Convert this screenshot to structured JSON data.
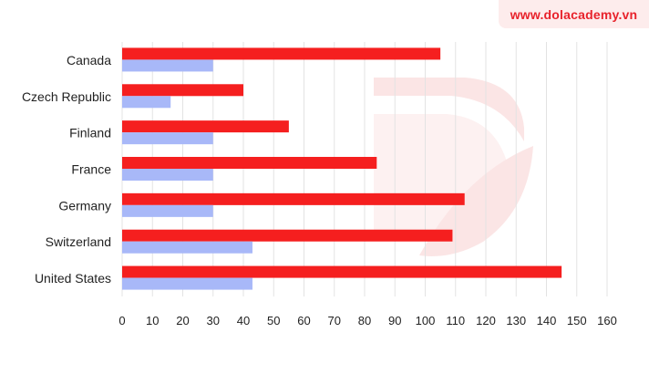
{
  "brand": {
    "text": "www.dolacademy.vn"
  },
  "chart_data": {
    "type": "bar",
    "orientation": "horizontal",
    "categories": [
      "Canada",
      "Czech Republic",
      "Finland",
      "France",
      "Germany",
      "Switzerland",
      "United States"
    ],
    "series": [
      {
        "color": "#f51f1f",
        "values": [
          105,
          40,
          55,
          84,
          113,
          109,
          145
        ]
      },
      {
        "color": "#a8b8f8",
        "values": [
          30,
          16,
          30,
          30,
          30,
          43,
          43
        ]
      }
    ],
    "x_ticks": [
      0,
      10,
      20,
      30,
      40,
      50,
      60,
      70,
      80,
      90,
      100,
      110,
      120,
      130,
      140,
      150,
      160
    ],
    "xlim": [
      0,
      160
    ],
    "grid": "vertical",
    "legend": "none",
    "title": "",
    "xlabel": "",
    "ylabel": ""
  },
  "colors": {
    "grid": "#e3e3e3",
    "text": "#222222",
    "brand": "#e8222b",
    "watermark": "#fbe5e5"
  }
}
